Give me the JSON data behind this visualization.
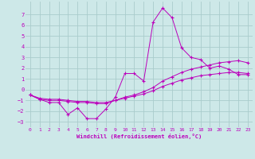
{
  "xlabel": "Windchill (Refroidissement éolien,°C)",
  "xlim": [
    -0.5,
    23.5
  ],
  "ylim": [
    -3.5,
    8.2
  ],
  "xticks": [
    0,
    1,
    2,
    3,
    4,
    5,
    6,
    7,
    8,
    9,
    10,
    11,
    12,
    13,
    14,
    15,
    16,
    17,
    18,
    19,
    20,
    21,
    22,
    23
  ],
  "yticks": [
    -3,
    -2,
    -1,
    0,
    1,
    2,
    3,
    4,
    5,
    6,
    7
  ],
  "background_color": "#cde8e8",
  "grid_color": "#aacccc",
  "line_color": "#bb00bb",
  "line1_x": [
    0,
    1,
    2,
    3,
    4,
    5,
    6,
    7,
    8,
    9,
    10,
    11,
    12,
    13,
    14,
    15,
    16,
    17,
    18,
    19,
    20,
    21,
    22,
    23
  ],
  "line1_y": [
    -0.5,
    -0.9,
    -1.2,
    -1.2,
    -2.3,
    -1.7,
    -2.7,
    -2.7,
    -1.8,
    -0.7,
    1.5,
    1.5,
    0.8,
    6.3,
    7.6,
    6.7,
    3.9,
    3.0,
    2.8,
    2.0,
    2.2,
    1.9,
    1.4,
    1.4
  ],
  "line2_x": [
    0,
    1,
    2,
    3,
    4,
    5,
    6,
    7,
    8,
    9,
    10,
    11,
    12,
    13,
    14,
    15,
    16,
    17,
    18,
    19,
    20,
    21,
    22,
    23
  ],
  "line2_y": [
    -0.5,
    -0.8,
    -0.9,
    -0.9,
    -1.0,
    -1.1,
    -1.1,
    -1.2,
    -1.2,
    -1.0,
    -0.8,
    -0.6,
    -0.4,
    -0.1,
    0.3,
    0.6,
    0.9,
    1.1,
    1.3,
    1.4,
    1.5,
    1.6,
    1.6,
    1.5
  ],
  "line3_x": [
    0,
    1,
    2,
    3,
    4,
    5,
    6,
    7,
    8,
    9,
    10,
    11,
    12,
    13,
    14,
    15,
    16,
    17,
    18,
    19,
    20,
    21,
    22,
    23
  ],
  "line3_y": [
    -0.5,
    -0.9,
    -1.0,
    -1.0,
    -1.1,
    -1.2,
    -1.2,
    -1.3,
    -1.3,
    -1.0,
    -0.7,
    -0.5,
    -0.2,
    0.2,
    0.8,
    1.2,
    1.6,
    1.9,
    2.1,
    2.3,
    2.5,
    2.6,
    2.7,
    2.5
  ]
}
